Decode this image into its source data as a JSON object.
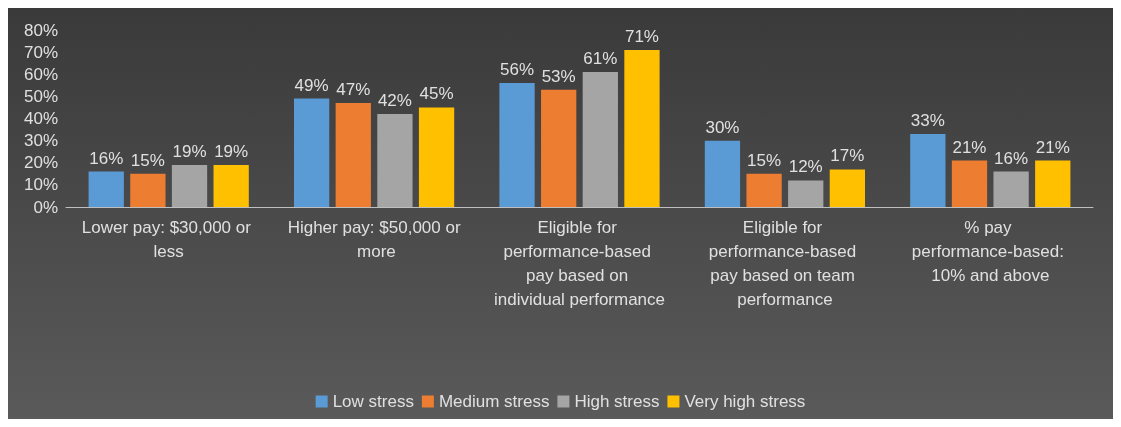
{
  "chart_data": {
    "type": "bar",
    "categories": [
      "Lower pay: $30,000 or less",
      "Higher pay: $50,000 or more",
      "Eligible for performance-based pay based on individual performance",
      "Eligible for performance-based pay based on team performance",
      "% pay performance-based: 10% and above"
    ],
    "series": [
      {
        "name": "Low stress",
        "color": "#5b9bd5",
        "values": [
          16,
          49,
          56,
          30,
          33
        ],
        "value_labels": [
          "16%",
          "49%",
          "56%",
          "30%",
          "33%"
        ]
      },
      {
        "name": "Medium stress",
        "color": "#ed7d31",
        "values": [
          15,
          47,
          53,
          15,
          21
        ],
        "value_labels": [
          "15%",
          "47%",
          "53%",
          "15%",
          "21%"
        ]
      },
      {
        "name": "High stress",
        "color": "#a5a5a5",
        "values": [
          19,
          42,
          61,
          12,
          16
        ],
        "value_labels": [
          "19%",
          "42%",
          "61%",
          "12%",
          "16%"
        ]
      },
      {
        "name": "Very high stress",
        "color": "#ffc000",
        "values": [
          19,
          45,
          71,
          17,
          21
        ],
        "value_labels": [
          "19%",
          "45%",
          "71%",
          "17%",
          "21%"
        ]
      }
    ],
    "ylim": [
      0,
      80
    ],
    "yticks": [
      {
        "value": 0,
        "label": "0%"
      },
      {
        "value": 10,
        "label": "10%"
      },
      {
        "value": 20,
        "label": "20%"
      },
      {
        "value": 30,
        "label": "30%"
      },
      {
        "value": 40,
        "label": "40%"
      },
      {
        "value": 50,
        "label": "50%"
      },
      {
        "value": 60,
        "label": "60%"
      },
      {
        "value": 70,
        "label": "70%"
      },
      {
        "value": 80,
        "label": "80%"
      }
    ],
    "legend": "bottom"
  }
}
